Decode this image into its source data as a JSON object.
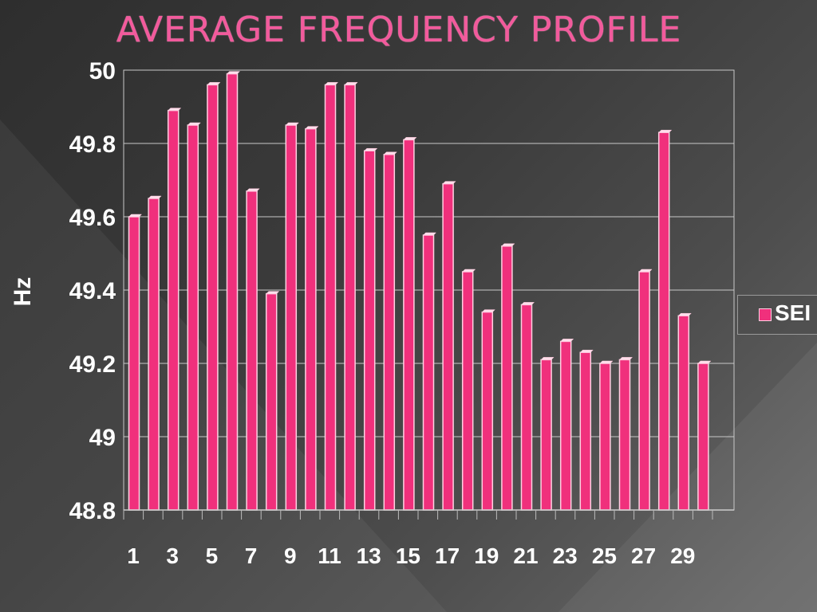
{
  "slide": {
    "title": "AVERAGE FREQUENCY PROFILE"
  },
  "chart_data": {
    "type": "bar",
    "title": "",
    "xlabel": "",
    "ylabel": "Hz",
    "ylim": [
      48.8,
      50
    ],
    "yticks": [
      "48.8",
      "49",
      "49.2",
      "49.4",
      "49.6",
      "49.8",
      "50"
    ],
    "categories": [
      "1",
      "2",
      "3",
      "4",
      "5",
      "6",
      "7",
      "8",
      "9",
      "10",
      "11",
      "12",
      "13",
      "14",
      "15",
      "16",
      "17",
      "18",
      "19",
      "20",
      "21",
      "22",
      "23",
      "24",
      "25",
      "26",
      "27",
      "28",
      "29",
      "30"
    ],
    "xtick_labels_shown": [
      "1",
      "3",
      "5",
      "7",
      "9",
      "11",
      "13",
      "15",
      "17",
      "19",
      "21",
      "23",
      "25",
      "27",
      "29"
    ],
    "series": [
      {
        "name": "SEI",
        "values": [
          49.6,
          49.65,
          49.89,
          49.85,
          49.96,
          49.99,
          49.67,
          49.39,
          49.85,
          49.84,
          49.96,
          49.96,
          49.78,
          49.77,
          49.81,
          49.55,
          49.69,
          49.45,
          49.34,
          49.52,
          49.36,
          49.21,
          49.26,
          49.23,
          49.2,
          49.21,
          49.45,
          49.83,
          49.33,
          49.2
        ]
      }
    ],
    "grid": true,
    "legend_placement": "right",
    "colors": {
      "bar": "#f0307c",
      "bar_edge": "#ffd0e2",
      "grid": "#c8c8c8",
      "title": "#f25a9c"
    }
  },
  "legend": {
    "label": "SEI"
  }
}
